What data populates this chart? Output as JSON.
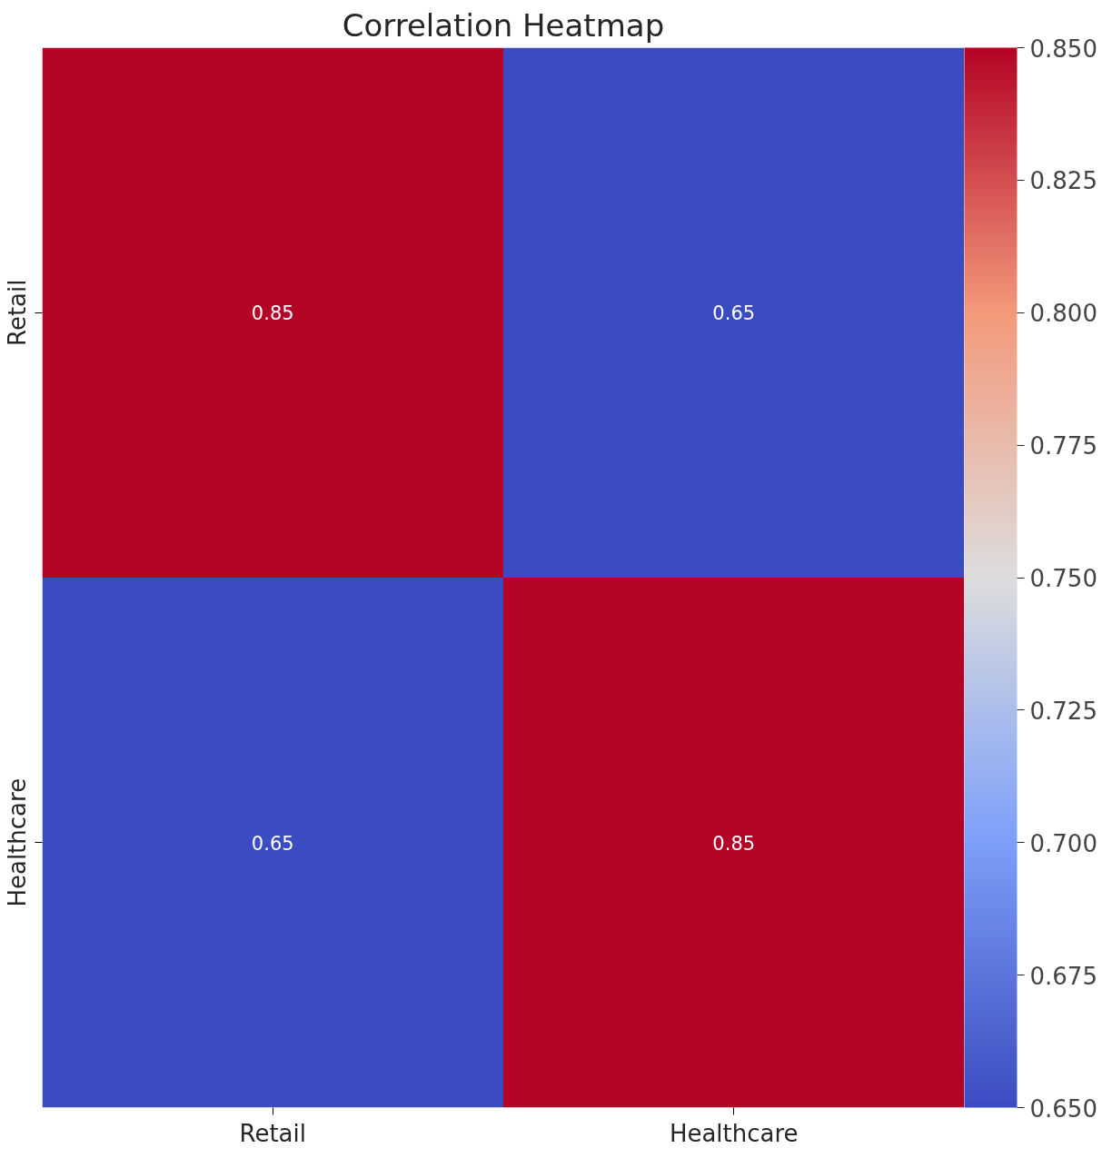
{
  "chart_data": {
    "type": "heatmap",
    "title": "Correlation Heatmap",
    "categories": [
      "Retail",
      "Healthcare"
    ],
    "y_categories": [
      "Retail",
      "Healthcare"
    ],
    "cells": [
      [
        0.85,
        0.65
      ],
      [
        0.65,
        0.85
      ]
    ],
    "data_labels": true,
    "clim": [
      0.65,
      0.85
    ],
    "cticks": [
      {
        "value": 0.65,
        "label": "0.650"
      },
      {
        "value": 0.675,
        "label": "0.675"
      },
      {
        "value": 0.7,
        "label": "0.700"
      },
      {
        "value": 0.725,
        "label": "0.725"
      },
      {
        "value": 0.75,
        "label": "0.750"
      },
      {
        "value": 0.775,
        "label": "0.775"
      },
      {
        "value": 0.8,
        "label": "0.800"
      },
      {
        "value": 0.825,
        "label": "0.825"
      },
      {
        "value": 0.85,
        "label": "0.850"
      }
    ]
  }
}
